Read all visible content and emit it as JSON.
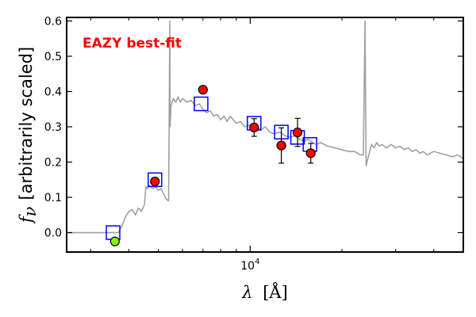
{
  "chart_data": {
    "type": "scatter",
    "xscale": "log",
    "xlim": [
      2500,
      50000
    ],
    "ylim": [
      -0.055,
      0.61
    ],
    "yticks": [
      0.0,
      0.1,
      0.2,
      0.3,
      0.4,
      0.5,
      0.6
    ],
    "ytick_labels": [
      "0.0",
      "0.1",
      "0.2",
      "0.3",
      "0.4",
      "0.5",
      "0.6"
    ],
    "xtick_labels": [
      {
        "value": 10000,
        "base": "10",
        "exp": "4"
      }
    ],
    "xlabel": {
      "sym": "λ",
      "unit": "[Å]"
    },
    "ylabel": {
      "sym": "f",
      "sub": "ν",
      "text": "[arbitrarily scaled]"
    },
    "annotation": {
      "text": "EAZY best-fit",
      "color": "#ff0000"
    },
    "grid": false,
    "colors": {
      "template": "#a0a0a0",
      "model_box": "#0000ff",
      "observed": "#ff0000",
      "observed_nondetect": "#7fff00",
      "errorbar": "#000000"
    },
    "series": [
      {
        "kind": "template_sed",
        "x": [
          2500,
          3400,
          3700,
          3800,
          3900,
          4000,
          4100,
          4200,
          4300,
          4400,
          4500,
          4550,
          4600,
          4650,
          4700,
          4800,
          4900,
          5000,
          5100,
          5200,
          5300,
          5400,
          5450,
          5460,
          5500,
          5600,
          5700,
          5800,
          5900,
          6000,
          6200,
          6400,
          6600,
          6800,
          7000,
          7200,
          7400,
          7600,
          7800,
          8000,
          8200,
          8400,
          8600,
          8800,
          9000,
          9300,
          9600,
          10000,
          10400,
          10800,
          11200,
          11600,
          12000,
          12500,
          13000,
          13500,
          14000,
          14500,
          15000,
          15500,
          16000,
          16500,
          17000,
          17500,
          18000,
          19000,
          20000,
          21000,
          22000,
          23000,
          23500,
          23800,
          24000,
          24500,
          25000,
          25500,
          26000,
          26500,
          27000,
          28000,
          29000,
          30000,
          31000,
          32000,
          33000,
          34000,
          35000,
          36000,
          37000,
          38000,
          40000,
          42000,
          44000,
          46000,
          48000,
          50000
        ],
        "y": [
          0.0,
          0.0,
          0.0,
          0.02,
          0.045,
          0.06,
          0.065,
          0.05,
          0.07,
          0.06,
          0.08,
          0.13,
          0.125,
          0.135,
          0.13,
          0.125,
          0.13,
          0.12,
          0.125,
          0.11,
          0.095,
          0.09,
          0.6,
          0.3,
          0.36,
          0.38,
          0.37,
          0.385,
          0.37,
          0.38,
          0.37,
          0.375,
          0.36,
          0.365,
          0.35,
          0.34,
          0.345,
          0.33,
          0.335,
          0.32,
          0.33,
          0.315,
          0.33,
          0.32,
          0.31,
          0.315,
          0.3,
          0.305,
          0.31,
          0.29,
          0.3,
          0.285,
          0.28,
          0.285,
          0.275,
          0.27,
          0.275,
          0.265,
          0.26,
          0.265,
          0.255,
          0.25,
          0.255,
          0.25,
          0.245,
          0.24,
          0.235,
          0.23,
          0.23,
          0.22,
          0.22,
          0.6,
          0.19,
          0.22,
          0.25,
          0.24,
          0.255,
          0.245,
          0.25,
          0.24,
          0.25,
          0.24,
          0.245,
          0.235,
          0.24,
          0.23,
          0.235,
          0.225,
          0.23,
          0.22,
          0.23,
          0.225,
          0.22,
          0.215,
          0.22,
          0.21
        ]
      },
      {
        "kind": "model_photometry",
        "x": [
          3550,
          4870,
          6900,
          10300,
          12650,
          14300,
          15700
        ],
        "y": [
          0.0,
          0.15,
          0.365,
          0.31,
          0.285,
          0.27,
          0.25
        ]
      },
      {
        "kind": "observed_photometry",
        "x": [
          3600,
          4870,
          7000,
          10300,
          12650,
          14300,
          15800
        ],
        "y": [
          -0.025,
          0.145,
          0.405,
          0.298,
          0.247,
          0.284,
          0.225
        ],
        "yerr": [
          0.005,
          0.008,
          0.007,
          0.025,
          0.05,
          0.04,
          0.028
        ],
        "nondetection": [
          true,
          false,
          false,
          false,
          false,
          false,
          false
        ]
      }
    ]
  }
}
